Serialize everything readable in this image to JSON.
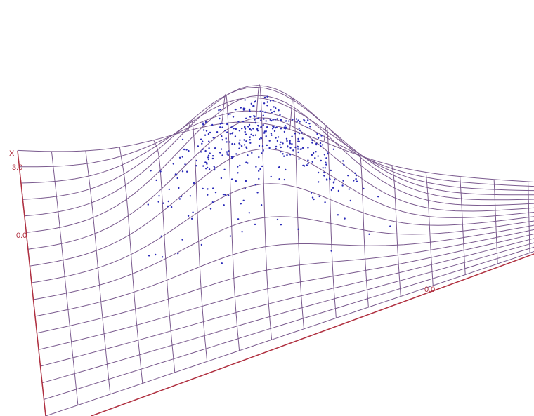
{
  "axis_labels": {
    "axis_name": "X",
    "top_tick": "3.0",
    "left_tick": "0.0",
    "front_tick": "0.0"
  }
}
